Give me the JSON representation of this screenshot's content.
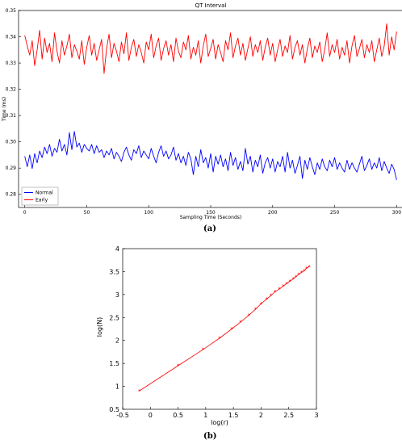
{
  "chart_data": [
    {
      "type": "line",
      "title": "QT Interval",
      "xlabel": "Sampling Time (Seconds)",
      "ylabel": "Time (ms)",
      "xlim": [
        -5,
        305
      ],
      "ylim": [
        0.275,
        0.35
      ],
      "xticks": [
        "0",
        "50",
        "100",
        "150",
        "200",
        "250",
        "300"
      ],
      "yticks": [
        "0.28",
        "0.29",
        "0.30",
        "0.31",
        "0.32",
        "0.33",
        "0.34",
        "0.35"
      ],
      "grid": false,
      "legend_position": "bottom-left",
      "x": [
        0,
        2,
        4,
        6,
        8,
        10,
        12,
        14,
        16,
        18,
        20,
        22,
        24,
        26,
        28,
        30,
        32,
        34,
        36,
        38,
        40,
        42,
        44,
        46,
        48,
        50,
        52,
        54,
        56,
        58,
        60,
        62,
        64,
        66,
        68,
        70,
        72,
        74,
        76,
        78,
        80,
        82,
        84,
        86,
        88,
        90,
        92,
        94,
        96,
        98,
        100,
        102,
        104,
        106,
        108,
        110,
        112,
        114,
        116,
        118,
        120,
        122,
        124,
        126,
        128,
        130,
        132,
        134,
        136,
        138,
        140,
        142,
        144,
        146,
        148,
        150,
        152,
        154,
        156,
        158,
        160,
        162,
        164,
        166,
        168,
        170,
        172,
        174,
        176,
        178,
        180,
        182,
        184,
        186,
        188,
        190,
        192,
        194,
        196,
        198,
        200,
        202,
        204,
        206,
        208,
        210,
        212,
        214,
        216,
        218,
        220,
        222,
        224,
        226,
        228,
        230,
        232,
        234,
        236,
        238,
        240,
        242,
        244,
        246,
        248,
        250,
        252,
        254,
        256,
        258,
        260,
        262,
        264,
        266,
        268,
        270,
        272,
        274,
        276,
        278,
        280,
        282,
        284,
        286,
        288,
        290,
        292,
        294,
        296,
        298,
        300
      ],
      "series": [
        {
          "name": "Normal",
          "color": "#0000ff",
          "values": [
            0.2945,
            0.2905,
            0.295,
            0.2898,
            0.2955,
            0.292,
            0.2965,
            0.294,
            0.298,
            0.2955,
            0.299,
            0.2945,
            0.2975,
            0.296,
            0.301,
            0.2965,
            0.299,
            0.295,
            0.3035,
            0.297,
            0.304,
            0.298,
            0.2995,
            0.296,
            0.299,
            0.2975,
            0.2965,
            0.299,
            0.2955,
            0.2985,
            0.296,
            0.297,
            0.294,
            0.2965,
            0.295,
            0.2975,
            0.2935,
            0.296,
            0.2945,
            0.2925,
            0.296,
            0.298,
            0.295,
            0.293,
            0.297,
            0.2955,
            0.2985,
            0.294,
            0.2965,
            0.295,
            0.2935,
            0.2975,
            0.2945,
            0.292,
            0.296,
            0.2985,
            0.2945,
            0.2965,
            0.2935,
            0.295,
            0.298,
            0.293,
            0.2955,
            0.292,
            0.2945,
            0.291,
            0.296,
            0.2935,
            0.2875,
            0.2945,
            0.2905,
            0.297,
            0.292,
            0.294,
            0.29,
            0.2955,
            0.2885,
            0.2945,
            0.2915,
            0.295,
            0.2905,
            0.2935,
            0.289,
            0.296,
            0.291,
            0.294,
            0.2895,
            0.2925,
            0.289,
            0.2975,
            0.2915,
            0.2945,
            0.2885,
            0.293,
            0.2905,
            0.295,
            0.288,
            0.292,
            0.294,
            0.29,
            0.2935,
            0.2885,
            0.2925,
            0.2905,
            0.2945,
            0.2885,
            0.296,
            0.29,
            0.293,
            0.288,
            0.291,
            0.2945,
            0.286,
            0.293,
            0.2895,
            0.294,
            0.2905,
            0.2875,
            0.292,
            0.2895,
            0.2935,
            0.2905,
            0.289,
            0.293,
            0.2905,
            0.294,
            0.2895,
            0.292,
            0.29,
            0.2885,
            0.293,
            0.2895,
            0.292,
            0.29,
            0.2885,
            0.2915,
            0.2945,
            0.289,
            0.291,
            0.2935,
            0.2895,
            0.292,
            0.29,
            0.294,
            0.289,
            0.2925,
            0.29,
            0.288,
            0.2915,
            0.2895,
            0.2855
          ]
        },
        {
          "name": "Early",
          "color": "#ff0000",
          "values": [
            0.3405,
            0.3365,
            0.333,
            0.3385,
            0.329,
            0.335,
            0.3425,
            0.3315,
            0.3395,
            0.334,
            0.3375,
            0.3305,
            0.3415,
            0.3345,
            0.33,
            0.3385,
            0.333,
            0.3365,
            0.341,
            0.332,
            0.337,
            0.3345,
            0.3315,
            0.3385,
            0.3295,
            0.336,
            0.3405,
            0.333,
            0.3375,
            0.331,
            0.335,
            0.339,
            0.326,
            0.3355,
            0.341,
            0.332,
            0.3375,
            0.3345,
            0.3305,
            0.338,
            0.3335,
            0.3415,
            0.331,
            0.336,
            0.339,
            0.3325,
            0.337,
            0.334,
            0.33,
            0.338,
            0.335,
            0.341,
            0.332,
            0.3365,
            0.3395,
            0.331,
            0.3355,
            0.3385,
            0.333,
            0.337,
            0.3305,
            0.3395,
            0.3345,
            0.332,
            0.338,
            0.335,
            0.3405,
            0.3315,
            0.336,
            0.333,
            0.3385,
            0.33,
            0.3365,
            0.341,
            0.3325,
            0.3355,
            0.339,
            0.3315,
            0.337,
            0.334,
            0.3305,
            0.3385,
            0.335,
            0.3415,
            0.332,
            0.3365,
            0.3395,
            0.333,
            0.3375,
            0.331,
            0.3355,
            0.34,
            0.3325,
            0.337,
            0.334,
            0.3385,
            0.331,
            0.336,
            0.3395,
            0.333,
            0.3375,
            0.3305,
            0.335,
            0.339,
            0.3325,
            0.3365,
            0.334,
            0.3405,
            0.3315,
            0.336,
            0.3385,
            0.333,
            0.337,
            0.33,
            0.3355,
            0.3395,
            0.332,
            0.3365,
            0.334,
            0.338,
            0.3305,
            0.335,
            0.3415,
            0.3325,
            0.337,
            0.334,
            0.339,
            0.3315,
            0.336,
            0.333,
            0.3385,
            0.33,
            0.3365,
            0.3405,
            0.3325,
            0.3355,
            0.339,
            0.332,
            0.337,
            0.334,
            0.3385,
            0.3305,
            0.335,
            0.3395,
            0.3325,
            0.3365,
            0.345,
            0.333,
            0.34,
            0.335,
            0.342
          ]
        }
      ],
      "caption": "(a)"
    },
    {
      "type": "line",
      "title": "",
      "xlabel": "log(r)",
      "ylabel": "log(N)",
      "xlim": [
        -0.5,
        3
      ],
      "ylim": [
        0.5,
        4
      ],
      "xticks": [
        "-0.5",
        "0",
        "0.5",
        "1",
        "1.5",
        "2",
        "2.5",
        "3"
      ],
      "yticks": [
        "0.5",
        "1",
        "1.5",
        "2",
        "2.5",
        "3",
        "3.5",
        "4"
      ],
      "grid": false,
      "marker": "*",
      "series": [
        {
          "color": "#ff0000",
          "x": [
            -0.2,
            0.5,
            0.95,
            1.25,
            1.47,
            1.63,
            1.78,
            1.9,
            2.0,
            2.1,
            2.18,
            2.25,
            2.33,
            2.4,
            2.46,
            2.52,
            2.58,
            2.63,
            2.68,
            2.73,
            2.78,
            2.82,
            2.87
          ],
          "y": [
            0.9,
            1.45,
            1.8,
            2.05,
            2.25,
            2.4,
            2.55,
            2.68,
            2.8,
            2.9,
            2.98,
            3.06,
            3.12,
            3.18,
            3.24,
            3.29,
            3.34,
            3.39,
            3.44,
            3.48,
            3.52,
            3.57,
            3.61
          ]
        }
      ],
      "caption": "(b)"
    }
  ]
}
